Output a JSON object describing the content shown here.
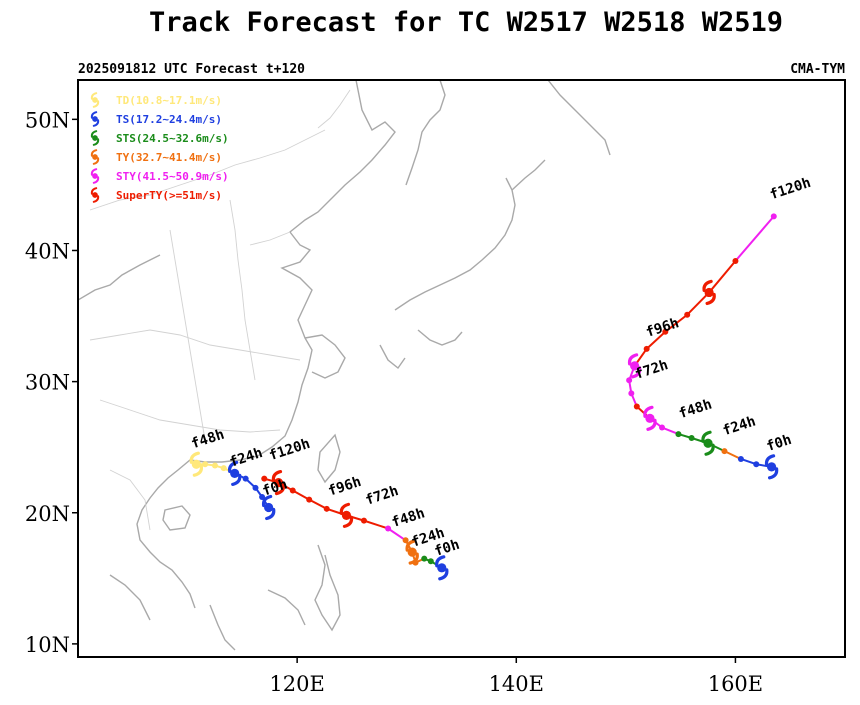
{
  "title": "Track Forecast for TC W2517 W2518 W2519",
  "subtitle_left": "2025091812 UTC Forecast t+120",
  "subtitle_right": "CMA-TYM",
  "axes": {
    "lon_range": [
      100,
      170
    ],
    "lat_range": [
      9,
      53
    ],
    "yticks": [
      {
        "lat": 10,
        "label": "10N"
      },
      {
        "lat": 20,
        "label": "20N"
      },
      {
        "lat": 30,
        "label": "30N"
      },
      {
        "lat": 40,
        "label": "40N"
      },
      {
        "lat": 50,
        "label": "50N"
      }
    ],
    "xticks": [
      {
        "lon": 120,
        "label": "120E"
      },
      {
        "lon": 140,
        "label": "140E"
      },
      {
        "lon": 160,
        "label": "160E"
      }
    ]
  },
  "legend": [
    {
      "label": "TD(10.8~17.1m/s)",
      "color": "#ffe87a"
    },
    {
      "label": "TS(17.2~24.4m/s)",
      "color": "#1f3fe0"
    },
    {
      "label": "STS(24.5~32.6m/s)",
      "color": "#1a8c1a"
    },
    {
      "label": "TY(32.7~41.4m/s)",
      "color": "#f07010"
    },
    {
      "label": "STY(41.5~50.9m/s)",
      "color": "#f020f0"
    },
    {
      "label": "SuperTY(>=51m/s)",
      "color": "#ee1c00"
    }
  ],
  "tracks": [
    {
      "name": "W2517",
      "points": [
        {
          "lon": 117.4,
          "lat": 20.4,
          "cat": "TS"
        },
        {
          "lon": 116.8,
          "lat": 21.2,
          "cat": "TS"
        },
        {
          "lon": 116.2,
          "lat": 21.9,
          "cat": "TS"
        },
        {
          "lon": 115.3,
          "lat": 22.6,
          "cat": "TS"
        },
        {
          "lon": 114.3,
          "lat": 23.0,
          "cat": "TS"
        },
        {
          "lon": 113.3,
          "lat": 23.4,
          "cat": "TD"
        },
        {
          "lon": 112.5,
          "lat": 23.6,
          "cat": "TD"
        },
        {
          "lon": 111.6,
          "lat": 23.7,
          "cat": "TD"
        },
        {
          "lon": 110.8,
          "lat": 23.7,
          "cat": "TD"
        }
      ],
      "labels": [
        {
          "text": "f0h",
          "lon": 117.0,
          "lat": 21.3
        },
        {
          "text": "f24h",
          "lon": 114.0,
          "lat": 23.5
        },
        {
          "text": "f48h",
          "lon": 110.5,
          "lat": 24.9
        }
      ]
    },
    {
      "name": "W2518",
      "points": [
        {
          "lon": 133.2,
          "lat": 15.8,
          "cat": "TS"
        },
        {
          "lon": 132.2,
          "lat": 16.3,
          "cat": "STS"
        },
        {
          "lon": 131.6,
          "lat": 16.5,
          "cat": "STS"
        },
        {
          "lon": 130.8,
          "lat": 16.2,
          "cat": "TY"
        },
        {
          "lon": 130.5,
          "lat": 17.0,
          "cat": "TY"
        },
        {
          "lon": 129.9,
          "lat": 17.9,
          "cat": "TY"
        },
        {
          "lon": 128.3,
          "lat": 18.8,
          "cat": "STY"
        },
        {
          "lon": 126.1,
          "lat": 19.4,
          "cat": "SuperTY"
        },
        {
          "lon": 124.5,
          "lat": 19.8,
          "cat": "SuperTY"
        },
        {
          "lon": 122.7,
          "lat": 20.3,
          "cat": "SuperTY"
        },
        {
          "lon": 121.1,
          "lat": 21.0,
          "cat": "SuperTY"
        },
        {
          "lon": 119.6,
          "lat": 21.7,
          "cat": "SuperTY"
        },
        {
          "lon": 118.3,
          "lat": 22.3,
          "cat": "SuperTY"
        },
        {
          "lon": 117.0,
          "lat": 22.6,
          "cat": "SuperTY"
        }
      ],
      "labels": [
        {
          "text": "f0h",
          "lon": 132.7,
          "lat": 16.7
        },
        {
          "text": "f24h",
          "lon": 130.6,
          "lat": 17.4
        },
        {
          "text": "f48h",
          "lon": 128.8,
          "lat": 18.9
        },
        {
          "text": "f72h",
          "lon": 126.4,
          "lat": 20.6
        },
        {
          "text": "f96h",
          "lon": 123.0,
          "lat": 21.3
        },
        {
          "text": "f120h",
          "lon": 117.6,
          "lat": 24.0
        }
      ]
    },
    {
      "name": "W2519",
      "points": [
        {
          "lon": 163.3,
          "lat": 23.5,
          "cat": "TS"
        },
        {
          "lon": 161.9,
          "lat": 23.7,
          "cat": "TS"
        },
        {
          "lon": 160.5,
          "lat": 24.1,
          "cat": "TS"
        },
        {
          "lon": 159.0,
          "lat": 24.7,
          "cat": "TY"
        },
        {
          "lon": 157.5,
          "lat": 25.3,
          "cat": "STS"
        },
        {
          "lon": 156.0,
          "lat": 25.7,
          "cat": "STS"
        },
        {
          "lon": 154.8,
          "lat": 26.0,
          "cat": "STS"
        },
        {
          "lon": 153.3,
          "lat": 26.5,
          "cat": "STY"
        },
        {
          "lon": 152.2,
          "lat": 27.2,
          "cat": "STY"
        },
        {
          "lon": 151.0,
          "lat": 28.1,
          "cat": "SuperTY"
        },
        {
          "lon": 150.5,
          "lat": 29.1,
          "cat": "STY"
        },
        {
          "lon": 150.3,
          "lat": 30.1,
          "cat": "STY"
        },
        {
          "lon": 150.8,
          "lat": 31.2,
          "cat": "STY"
        },
        {
          "lon": 151.9,
          "lat": 32.5,
          "cat": "SuperTY"
        },
        {
          "lon": 153.6,
          "lat": 33.8,
          "cat": "SuperTY"
        },
        {
          "lon": 155.6,
          "lat": 35.1,
          "cat": "SuperTY"
        },
        {
          "lon": 157.6,
          "lat": 36.8,
          "cat": "SuperTY"
        },
        {
          "lon": 160.0,
          "lat": 39.2,
          "cat": "SuperTY"
        },
        {
          "lon": 163.5,
          "lat": 42.6,
          "cat": "STY"
        }
      ],
      "labels": [
        {
          "text": "f0h",
          "lon": 163.0,
          "lat": 24.7
        },
        {
          "text": "f24h",
          "lon": 159.0,
          "lat": 25.9
        },
        {
          "text": "f48h",
          "lon": 155.0,
          "lat": 27.2
        },
        {
          "text": "f72h",
          "lon": 151.0,
          "lat": 30.2
        },
        {
          "text": "f96h",
          "lon": 152.0,
          "lat": 33.4
        },
        {
          "text": "f120h",
          "lon": 163.3,
          "lat": 43.9
        }
      ]
    }
  ]
}
